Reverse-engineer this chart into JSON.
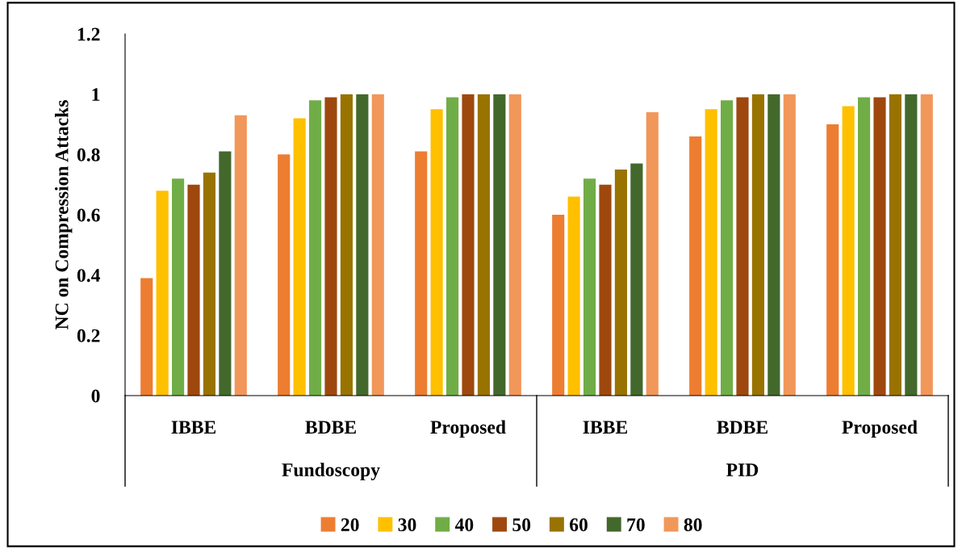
{
  "chart_data": {
    "type": "bar",
    "ylabel": "NC on Compression Attacks",
    "categories": [
      "IBBE",
      "BDBE",
      "Proposed",
      "IBBE",
      "BDBE",
      "Proposed"
    ],
    "annotations": [
      "Fundoscopy",
      "PID"
    ],
    "series": [
      {
        "name": "20",
        "color": "#ed7d31",
        "values": [
          0.39,
          0.8,
          0.81,
          0.6,
          0.86,
          0.9
        ]
      },
      {
        "name": "30",
        "color": "#ffc000",
        "values": [
          0.68,
          0.92,
          0.95,
          0.66,
          0.95,
          0.96
        ]
      },
      {
        "name": "40",
        "color": "#70ad47",
        "values": [
          0.72,
          0.98,
          0.99,
          0.72,
          0.98,
          0.99
        ]
      },
      {
        "name": "50",
        "color": "#9e480e",
        "values": [
          0.7,
          0.99,
          1.0,
          0.7,
          0.99,
          0.99
        ]
      },
      {
        "name": "60",
        "color": "#997300",
        "values": [
          0.74,
          1.0,
          1.0,
          0.75,
          1.0,
          1.0
        ]
      },
      {
        "name": "70",
        "color": "#43682b",
        "values": [
          0.81,
          1.0,
          1.0,
          0.77,
          1.0,
          1.0
        ]
      },
      {
        "name": "80",
        "color": "#f1975a",
        "values": [
          0.93,
          1.0,
          1.0,
          0.94,
          1.0,
          1.0
        ]
      }
    ],
    "ylim": [
      0,
      1.2
    ],
    "yticks": [
      0,
      0.2,
      0.4,
      0.6,
      0.8,
      1,
      1.2
    ],
    "grid": false,
    "legend": "bottom"
  }
}
